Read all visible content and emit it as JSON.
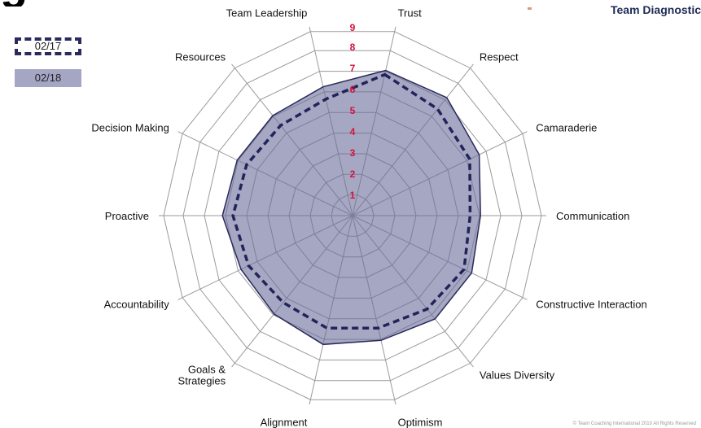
{
  "header": {
    "title_fragment": "g",
    "brand": "Team Diagnostic"
  },
  "legend": [
    {
      "label": "02/17",
      "style": "dashed-outline"
    },
    {
      "label": "02/18",
      "style": "filled"
    }
  ],
  "colors": {
    "fill": "#6a6c9a",
    "fill_stroke": "#2a2b5c",
    "dashed": "#22235a",
    "grid": "#9a9a9a",
    "ring_label": "#d0143c"
  },
  "chart_data": {
    "type": "radar",
    "title": "",
    "categories": [
      "Trust",
      "Respect",
      "Camaraderie",
      "Communication",
      "Constructive Interaction",
      "Values Diversity",
      "Optimism",
      "Alignment",
      "Goals & Strategies",
      "Accountability",
      "Proactive",
      "Decision Making",
      "Resources",
      "Team Leadership"
    ],
    "ring_labels": [
      "1",
      "2",
      "3",
      "4",
      "5",
      "6",
      "7",
      "8",
      "9"
    ],
    "range": [
      0,
      9
    ],
    "series": [
      {
        "name": "02/17",
        "style": "dashed",
        "values": [
          6.9,
          6.5,
          6.2,
          5.6,
          5.9,
          5.7,
          5.5,
          5.5,
          5.3,
          5.5,
          5.7,
          5.6,
          5.5,
          5.7
        ]
      },
      {
        "name": "02/18",
        "style": "filled",
        "values": [
          7.1,
          7.2,
          6.7,
          6.1,
          6.3,
          6.3,
          6.1,
          6.3,
          6.0,
          5.9,
          6.2,
          6.1,
          6.1,
          6.3
        ]
      }
    ]
  },
  "footer": {
    "copyright": "© Team Coaching International 2010 All Rights Reserved"
  }
}
